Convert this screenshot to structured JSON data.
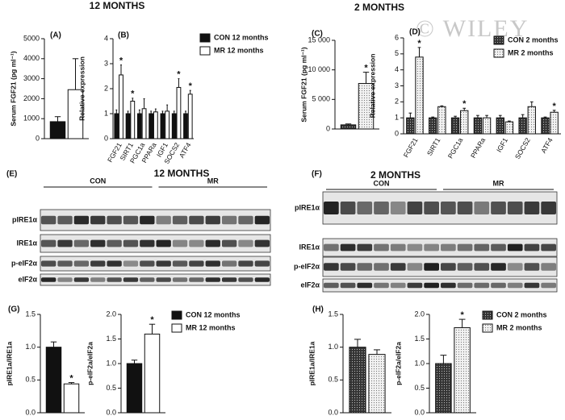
{
  "headings": [
    "12 MONTHS",
    "2 MONTHS"
  ],
  "watermark": "© WILEY",
  "blots": [
    {
      "panel": "(E)",
      "title": "12 MONTHS",
      "groups": [
        "CON",
        "MR"
      ],
      "rows": [
        "pIRE1α",
        "IRE1α",
        "p-eIF2α",
        "eIF2α"
      ]
    },
    {
      "panel": "(F)",
      "title": "2 MONTHS",
      "groups": [
        "CON",
        "MR"
      ],
      "rows": [
        "pIRE1α",
        "IRE1α",
        "p-eIF2α",
        "eIF2α"
      ]
    }
  ],
  "chart_data": [
    {
      "type": "bar",
      "panel": "(A)",
      "y_label": "Serum FGF21 (pg ml⁻¹)",
      "categories": [
        null
      ],
      "series": [
        {
          "color": "#111111",
          "values": [
            850
          ],
          "errors": [
            250
          ]
        },
        {
          "color": "#ffffff",
          "values": [
            2450
          ],
          "errors": [
            1550
          ]
        }
      ],
      "ylim": [
        0,
        5000
      ],
      "yticks": [
        0,
        1000,
        2000,
        3000,
        4000,
        5000
      ]
    },
    {
      "type": "bar",
      "panel": "(B)",
      "y_label": "Relative expression",
      "categories": [
        "FGF21",
        "SIRT1",
        "PGC1a",
        "PPARa",
        "IGF1",
        "SOCS2",
        "ATF4"
      ],
      "series": [
        {
          "name": "CON 12 months",
          "color": "#111111",
          "values": [
            1,
            1,
            1,
            1,
            1,
            1,
            1
          ],
          "errors": [
            0.15,
            0.1,
            0.15,
            0.1,
            0.1,
            0.1,
            0.1
          ]
        },
        {
          "name": "MR 12 months",
          "color": "#ffffff",
          "values": [
            2.55,
            1.5,
            1.2,
            1.07,
            1.1,
            2.05,
            1.78
          ],
          "errors": [
            0.4,
            0.12,
            0.4,
            0.12,
            0.25,
            0.35,
            0.15
          ],
          "annotations": [
            "*",
            "*",
            null,
            null,
            null,
            "*",
            "*"
          ]
        }
      ],
      "ylim": [
        0,
        4
      ],
      "yticks": [
        0,
        1,
        2,
        3,
        4
      ]
    },
    {
      "type": "bar",
      "panel": "(C)",
      "y_label": "Serum FGF21 (pg ml⁻¹)",
      "categories": [
        null
      ],
      "series": [
        {
          "color": "#333333",
          "pattern": "dots",
          "dot_color": "#bbbbbb",
          "values": [
            700
          ],
          "errors": [
            150
          ]
        },
        {
          "color": "#f2f2f2",
          "pattern": "dots",
          "dot_color": "#777777",
          "values": [
            7700
          ],
          "errors": [
            1900
          ],
          "annotations": [
            "*"
          ]
        }
      ],
      "ylim": [
        0,
        15000
      ],
      "yticks": [
        0,
        {
          "value": 5000,
          "label": "5 000"
        },
        {
          "value": 10000,
          "label": "10 000"
        },
        {
          "value": 15000,
          "label": "15 000"
        }
      ]
    },
    {
      "type": "bar",
      "panel": "(D)",
      "y_label": "Relative expression",
      "categories": [
        "FGF21",
        "SIRT1",
        "PGC1a",
        "PPARa",
        "IGF1",
        "SOCS2",
        "ATF4"
      ],
      "series": [
        {
          "name": "CON 2 months",
          "color": "#333333",
          "pattern": "dots",
          "dot_color": "#bbbbbb",
          "values": [
            1,
            1,
            1,
            1,
            1,
            1,
            1
          ],
          "errors": [
            0.3,
            0.05,
            0.1,
            0.15,
            0.15,
            0.2,
            0.05
          ]
        },
        {
          "name": "MR 2 months",
          "color": "#f2f2f2",
          "pattern": "dots",
          "dot_color": "#777777",
          "values": [
            4.8,
            1.7,
            1.45,
            1,
            0.75,
            1.7,
            1.35
          ],
          "errors": [
            0.6,
            0.05,
            0.15,
            0.15,
            0.05,
            0.3,
            0.12
          ],
          "annotations": [
            "*",
            null,
            "*",
            null,
            null,
            null,
            "*"
          ]
        }
      ],
      "ylim": [
        0,
        6
      ],
      "yticks": [
        0,
        1,
        2,
        3,
        4,
        5,
        6
      ]
    },
    {
      "type": "bar",
      "panel": "(G)",
      "y_label": "pIRE1a/IRE1a",
      "categories": [
        null
      ],
      "series": [
        {
          "color": "#111111",
          "values": [
            1.0
          ],
          "errors": [
            0.08
          ]
        },
        {
          "color": "#ffffff",
          "values": [
            0.44
          ],
          "errors": [
            0.02
          ],
          "annotations": [
            "*"
          ]
        }
      ],
      "ylim": [
        0,
        1.5
      ],
      "yticks": [
        {
          "value": 0,
          "label": "0.0"
        },
        0.5,
        {
          "value": 1,
          "label": "1.0"
        },
        1.5
      ]
    },
    {
      "type": "bar",
      "y_label": "p-eIF2a/eIF2a",
      "categories": [
        null
      ],
      "series": [
        {
          "name": "CON 12 months",
          "color": "#111111",
          "values": [
            1.0
          ],
          "errors": [
            0.07
          ]
        },
        {
          "name": "MR 12 months",
          "color": "#ffffff",
          "values": [
            1.6
          ],
          "errors": [
            0.2
          ],
          "annotations": [
            "*"
          ]
        }
      ],
      "ylim": [
        0,
        2
      ],
      "yticks": [
        {
          "value": 0,
          "label": "0.0"
        },
        0.5,
        {
          "value": 1,
          "label": "1.0"
        },
        1.5,
        {
          "value": 2,
          "label": "2.0"
        }
      ]
    },
    {
      "type": "bar",
      "panel": "(H)",
      "y_label": "pIRE1a/IRE1a",
      "categories": [
        null
      ],
      "series": [
        {
          "color": "#333333",
          "pattern": "dots",
          "dot_color": "#bbbbbb",
          "values": [
            1.0
          ],
          "errors": [
            0.12
          ]
        },
        {
          "color": "#f2f2f2",
          "pattern": "dots",
          "dot_color": "#777777",
          "values": [
            0.89
          ],
          "errors": [
            0.07
          ]
        }
      ],
      "ylim": [
        0,
        1.5
      ],
      "yticks": [
        {
          "value": 0,
          "label": "0.0"
        },
        0.5,
        {
          "value": 1,
          "label": "1.0"
        },
        1.5
      ]
    },
    {
      "type": "bar",
      "y_label": "p-eIF2a/eIF2a",
      "categories": [
        null
      ],
      "series": [
        {
          "name": "CON 2 months",
          "color": "#333333",
          "pattern": "dots",
          "dot_color": "#bbbbbb",
          "values": [
            1.0
          ],
          "errors": [
            0.17
          ]
        },
        {
          "name": "MR 2 months",
          "color": "#f2f2f2",
          "pattern": "dots",
          "dot_color": "#777777",
          "values": [
            1.73
          ],
          "errors": [
            0.17
          ],
          "annotations": [
            "*"
          ]
        }
      ],
      "ylim": [
        0,
        2
      ],
      "yticks": [
        {
          "value": 0,
          "label": "0.0"
        },
        0.5,
        {
          "value": 1,
          "label": "1.0"
        },
        1.5,
        {
          "value": 2,
          "label": "2.0"
        }
      ]
    }
  ]
}
